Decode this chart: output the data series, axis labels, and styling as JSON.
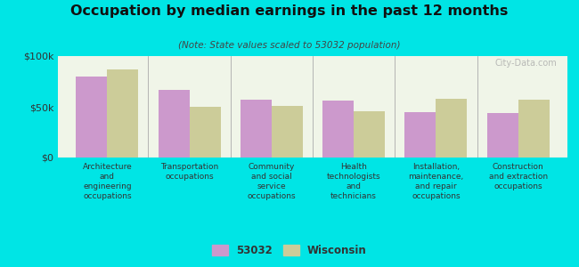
{
  "title": "Occupation by median earnings in the past 12 months",
  "subtitle": "(Note: State values scaled to 53032 population)",
  "categories": [
    "Architecture\nand\nengineering\noccupations",
    "Transportation\noccupations",
    "Community\nand social\nservice\noccupations",
    "Health\ntechnologists\nand\ntechnicians",
    "Installation,\nmaintenance,\nand repair\noccupations",
    "Construction\nand extraction\noccupations"
  ],
  "values_53032": [
    80000,
    67000,
    57000,
    56000,
    45000,
    44000
  ],
  "values_wisconsin": [
    87000,
    50000,
    51000,
    46000,
    58000,
    57000
  ],
  "color_53032": "#cc99cc",
  "color_wisconsin": "#cccc99",
  "background_outer": "#00e5e5",
  "background_plot": "#f0f5e8",
  "ylim": [
    0,
    100000
  ],
  "ytick_labels": [
    "$0",
    "$50k",
    "$100k"
  ],
  "legend_label_53032": "53032",
  "legend_label_wisconsin": "Wisconsin",
  "watermark": "City-Data.com"
}
